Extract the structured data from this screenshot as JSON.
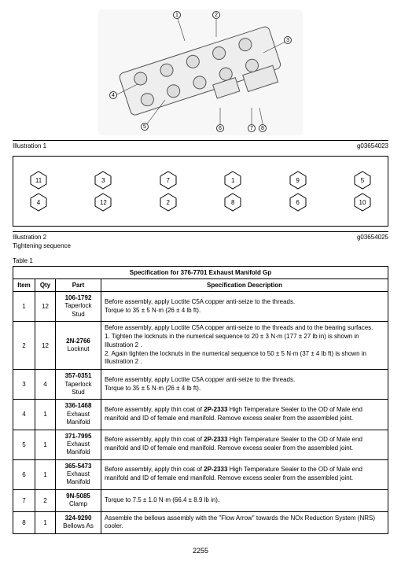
{
  "illus1": {
    "label": "Illustration 1",
    "code": "g03654023",
    "balloons": [
      "1",
      "2",
      "3",
      "4",
      "5",
      "6",
      "7",
      "8"
    ]
  },
  "illus2": {
    "label": "Illustration 2",
    "code": "g03654025",
    "subcaption": "Tightening sequence",
    "seq_top": [
      "11",
      "3",
      "7",
      "1",
      "9",
      "5"
    ],
    "seq_bot": [
      "4",
      "12",
      "2",
      "8",
      "6",
      "10"
    ]
  },
  "table": {
    "supertitle": "Table 1",
    "title": "Specification for 376-7701 Exhaust Manifold Gp",
    "headers": [
      "Item",
      "Qty",
      "Part",
      "Specification Description"
    ],
    "rows": [
      {
        "item": "1",
        "qty": "12",
        "partnum": "106-1792",
        "partname": "Taperlock Stud",
        "desc": "Before assembly, apply Loctite C5A copper anti-seize to the threads.\nTorque to 35 ± 5 N·m (26 ± 4 lb ft)."
      },
      {
        "item": "2",
        "qty": "12",
        "partnum": "2N-2766",
        "partname": "Locknut",
        "desc": "Before assembly, apply Loctite C5A copper anti-seize to the threads and to the bearing surfaces.\n1. Tighten the locknuts in the numerical sequence to 20 ± 3 N·m (177 ± 27 lb in) is shown in Illustration 2 .\n2. Again tighten the locknuts in the numerical sequence to 50 ± 5 N·m (37 ± 4 lb ft) is shown in Illustration 2 ."
      },
      {
        "item": "3",
        "qty": "4",
        "partnum": "357-0351",
        "partname": "Taperlock Stud",
        "desc": "Before assembly, apply Loctite C5A copper anti-seize to the threads.\nTorque to 35 ± 5 N·m (26 ± 4 lb ft)."
      },
      {
        "item": "4",
        "qty": "1",
        "partnum": "336-1468",
        "partname": "Exhaust Manifold",
        "desc": "Before assembly, apply thin coat of <b>2P-2333</b> High Temperature Sealer to the OD of Male end manifold and ID of female end manifold. Remove excess sealer from the assembled joint."
      },
      {
        "item": "5",
        "qty": "1",
        "partnum": "371-7995",
        "partname": "Exhaust Manifold",
        "desc": "Before assembly, apply thin coat of <b>2P-2333</b> High Temperature Sealer to the OD of Male end manifold and ID of female end manifold. Remove excess sealer from the assembled joint."
      },
      {
        "item": "6",
        "qty": "1",
        "partnum": "365-5473",
        "partname": "Exhaust Manifold",
        "desc": "Before assembly, apply thin coat of <b>2P-2333</b> High Temperature Sealer to the OD of Male end manifold and ID of female end manifold. Remove excess sealer from the assembled joint."
      },
      {
        "item": "7",
        "qty": "2",
        "partnum": "9N-5085",
        "partname": "Clamp",
        "desc": "Torque to 7.5 ± 1.0 N·m (66.4 ± 8.9 lb in)."
      },
      {
        "item": "8",
        "qty": "1",
        "partnum": "324-9290",
        "partname": "Bellows As",
        "desc": "Assemble the bellows assembly with the \"Flow Arrow\" towards the NOx Reduction System (NRS) cooler."
      }
    ]
  },
  "pagenum": "2255"
}
